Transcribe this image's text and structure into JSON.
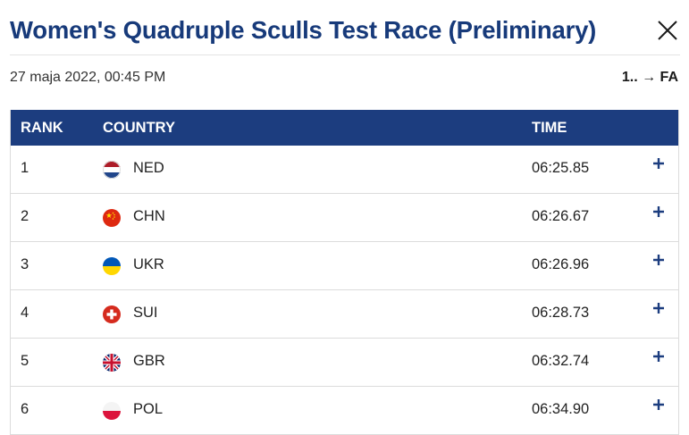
{
  "title": "Women's Quadruple Sculls Test Race (Preliminary)",
  "date": "27 maja 2022, 00:45 PM",
  "progression": "1.. → FA",
  "columns": {
    "rank": "RANK",
    "country": "COUNTRY",
    "time": "TIME"
  },
  "icons": {
    "close": "close-icon",
    "expand": "plus-icon"
  },
  "colors": {
    "header_bg": "#1c3d7f",
    "title": "#173a7a"
  },
  "results": [
    {
      "rank": "1",
      "country": "NED",
      "time": "06:25.85"
    },
    {
      "rank": "2",
      "country": "CHN",
      "time": "06:26.67"
    },
    {
      "rank": "3",
      "country": "UKR",
      "time": "06:26.96"
    },
    {
      "rank": "4",
      "country": "SUI",
      "time": "06:28.73"
    },
    {
      "rank": "5",
      "country": "GBR",
      "time": "06:32.74"
    },
    {
      "rank": "6",
      "country": "POL",
      "time": "06:34.90"
    }
  ]
}
